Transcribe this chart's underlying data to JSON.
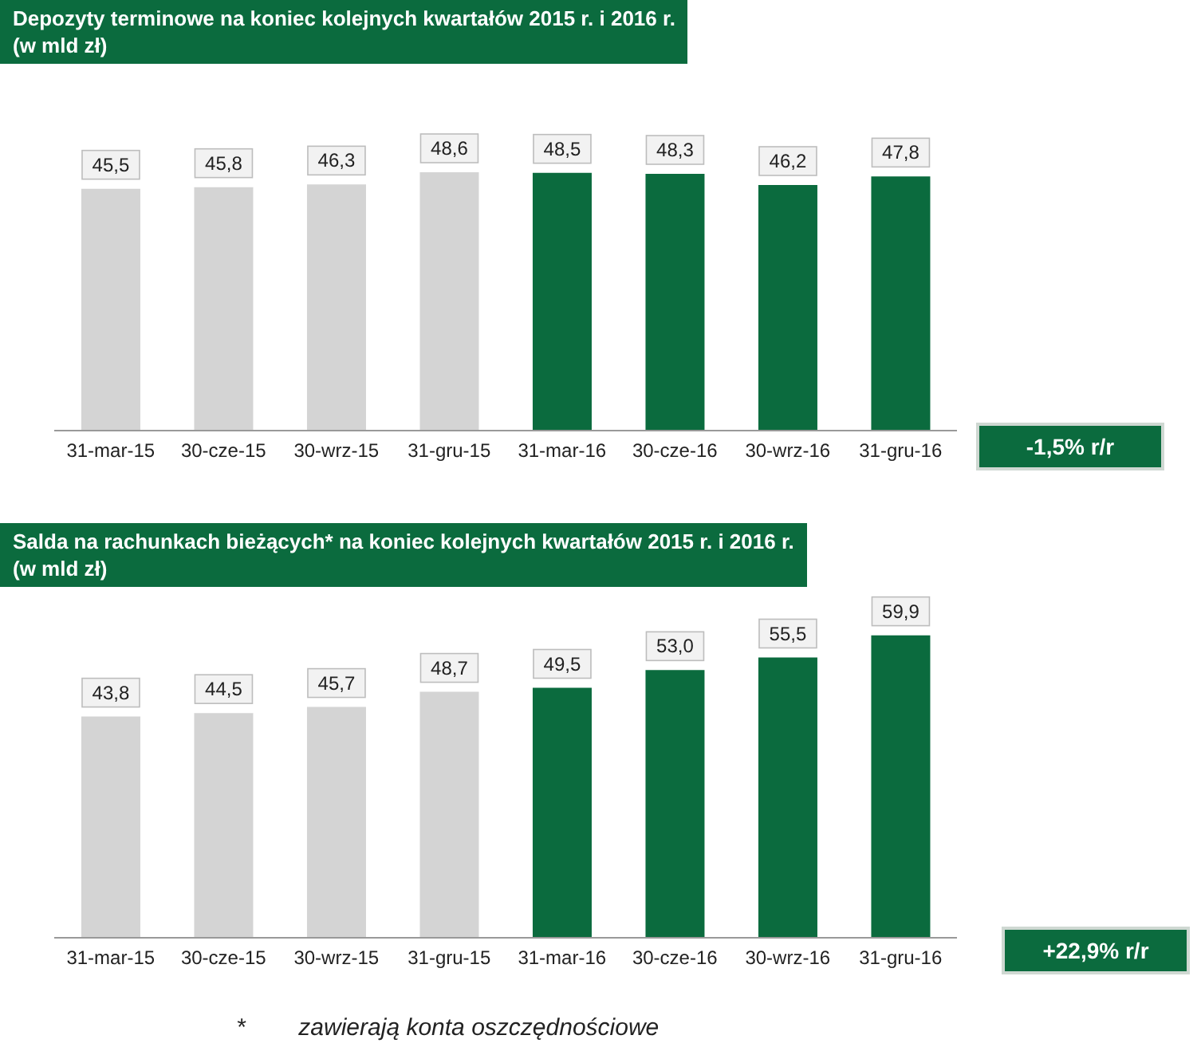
{
  "chart_data": [
    {
      "type": "bar",
      "title": "Depozyty terminowe na koniec  kolejnych kwartałów 2015 r. i 2016 r.\n(w mld zł)",
      "categories": [
        "31-mar-15",
        "30-cze-15",
        "30-wrz-15",
        "31-gru-15",
        "31-mar-16",
        "30-cze-16",
        "30-wrz-16",
        "31-gru-16"
      ],
      "values": [
        45.5,
        45.8,
        46.3,
        48.6,
        48.5,
        48.3,
        46.2,
        47.8
      ],
      "colors": [
        "#d4d4d4",
        "#d4d4d4",
        "#d4d4d4",
        "#d4d4d4",
        "#0b6b3e",
        "#0b6b3e",
        "#0b6b3e",
        "#0b6b3e"
      ],
      "value_labels": [
        "45,5",
        "45,8",
        "46,3",
        "48,6",
        "48,5",
        "48,3",
        "46,2",
        "47,8"
      ],
      "annotations": [
        "-1,5% r/r"
      ]
    },
    {
      "type": "bar",
      "title": "Salda na rachunkach bieżących* na koniec kolejnych kwartałów 2015 r. i  2016 r.\n(w mld zł)",
      "categories": [
        "31-mar-15",
        "30-cze-15",
        "30-wrz-15",
        "31-gru-15",
        "31-mar-16",
        "30-cze-16",
        "30-wrz-16",
        "31-gru-16"
      ],
      "values": [
        43.8,
        44.5,
        45.7,
        48.7,
        49.5,
        53.0,
        55.5,
        59.9
      ],
      "colors": [
        "#d4d4d4",
        "#d4d4d4",
        "#d4d4d4",
        "#d4d4d4",
        "#0b6b3e",
        "#0b6b3e",
        "#0b6b3e",
        "#0b6b3e"
      ],
      "value_labels": [
        "43,8",
        "44,5",
        "45,7",
        "48,7",
        "49,5",
        "53,0",
        "55,5",
        "59,9"
      ],
      "annotations": [
        "+22,9% r/r",
        "*        zawierają konta oszczędnościowe"
      ]
    }
  ]
}
